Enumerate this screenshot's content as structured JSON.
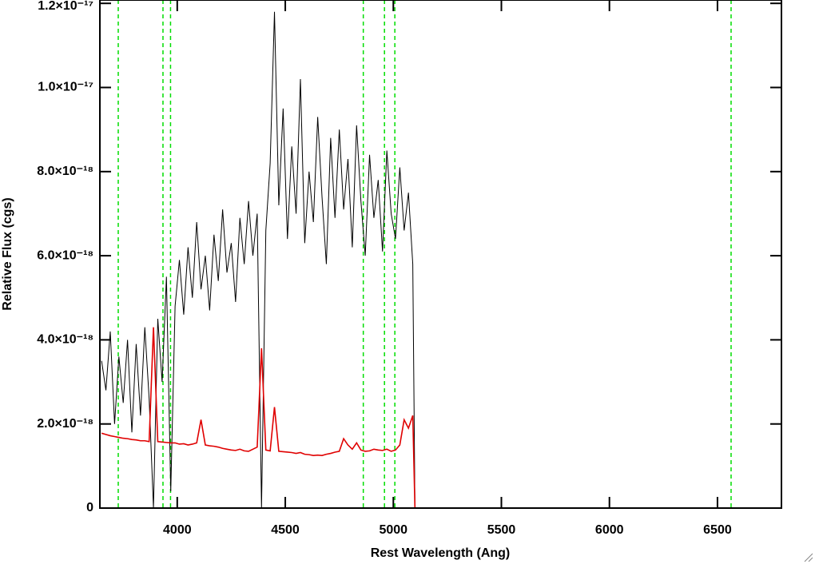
{
  "chart_data": {
    "type": "line",
    "xlabel": "Rest Wavelength (Ang)",
    "ylabel": "Relative Flux (cgs)",
    "xlim": [
      3642,
      6796
    ],
    "ylim": [
      0,
      1.208e-17
    ],
    "xticks": [
      4000,
      4500,
      5000,
      5500,
      6000,
      6500
    ],
    "yticks": [
      0,
      {
        "value": 2e-18,
        "label": "2.0×10⁻¹⁸"
      },
      {
        "value": 4e-18,
        "label": "4.0×10⁻¹⁸"
      },
      {
        "value": 6e-18,
        "label": "6.0×10⁻¹⁸"
      },
      {
        "value": 8e-18,
        "label": "8.0×10⁻¹⁸"
      },
      {
        "value": 1e-17,
        "label": "1.0×10⁻¹⁷"
      },
      {
        "value": 1.2e-17,
        "label": "1.2×10⁻¹⁷"
      }
    ],
    "x": [
      3650,
      3670,
      3690,
      3710,
      3730,
      3750,
      3770,
      3790,
      3810,
      3830,
      3850,
      3870,
      3890,
      3910,
      3930,
      3950,
      3970,
      3990,
      4010,
      4030,
      4050,
      4070,
      4090,
      4110,
      4130,
      4150,
      4170,
      4190,
      4210,
      4230,
      4250,
      4270,
      4290,
      4310,
      4330,
      4350,
      4370,
      4390,
      4410,
      4430,
      4450,
      4470,
      4490,
      4510,
      4530,
      4550,
      4570,
      4590,
      4610,
      4630,
      4650,
      4670,
      4690,
      4710,
      4730,
      4750,
      4770,
      4790,
      4810,
      4830,
      4850,
      4870,
      4890,
      4910,
      4930,
      4950,
      4970,
      4990,
      5010,
      5030,
      5050,
      5070,
      5090,
      5100,
      6790
    ],
    "series": [
      {
        "color": "#000000",
        "values": [
          3.5e-18,
          2.8e-18,
          4.2e-18,
          2e-18,
          3.6e-18,
          2.5e-18,
          4e-18,
          1.8e-18,
          3.9e-18,
          2.2e-18,
          4.3e-18,
          2.6e-18,
          0,
          4.5e-18,
          3e-18,
          5.5e-18,
          4e-19,
          4.8e-18,
          5.9e-18,
          4.6e-18,
          6.2e-18,
          5e-18,
          6.8e-18,
          5.2e-18,
          6e-18,
          4.7e-18,
          6.5e-18,
          5.4e-18,
          7.1e-18,
          5.6e-18,
          6.3e-18,
          4.9e-18,
          6.9e-18,
          5.8e-18,
          7.3e-18,
          6e-18,
          7e-18,
          0,
          6.6e-18,
          8.2e-18,
          1.18e-17,
          7.2e-18,
          9.5e-18,
          6.4e-18,
          8.6e-18,
          7e-18,
          1.02e-17,
          6.3e-18,
          8e-18,
          6.8e-18,
          9.3e-18,
          7.4e-18,
          5.8e-18,
          8.8e-18,
          6.9e-18,
          9e-18,
          7.1e-18,
          8.3e-18,
          6.2e-18,
          9.1e-18,
          7.3e-18,
          6e-18,
          8.4e-18,
          6.9e-18,
          7.8e-18,
          6.1e-18,
          8.5e-18,
          7e-18,
          6.4e-18,
          8.1e-18,
          6.6e-18,
          7.5e-18,
          5.8e-18,
          0,
          0
        ]
      },
      {
        "color": "#e00000",
        "values": [
          1.78e-18,
          1.75e-18,
          1.72e-18,
          1.7e-18,
          1.68e-18,
          1.66e-18,
          1.65e-18,
          1.63e-18,
          1.62e-18,
          1.6e-18,
          1.6e-18,
          1.58e-18,
          4.3e-18,
          1.58e-18,
          1.57e-18,
          1.56e-18,
          1.55e-18,
          1.55e-18,
          1.52e-18,
          1.53e-18,
          1.5e-18,
          1.52e-18,
          1.55e-18,
          2.1e-18,
          1.5e-18,
          1.48e-18,
          1.47e-18,
          1.45e-18,
          1.42e-18,
          1.4e-18,
          1.38e-18,
          1.37e-18,
          1.4e-18,
          1.36e-18,
          1.35e-18,
          1.4e-18,
          1.45e-18,
          3.8e-18,
          1.38e-18,
          1.36e-18,
          2.4e-18,
          1.35e-18,
          1.34e-18,
          1.33e-18,
          1.32e-18,
          1.3e-18,
          1.32e-18,
          1.28e-18,
          1.27e-18,
          1.25e-18,
          1.26e-18,
          1.25e-18,
          1.28e-18,
          1.3e-18,
          1.33e-18,
          1.35e-18,
          1.65e-18,
          1.5e-18,
          1.4e-18,
          1.55e-18,
          1.38e-18,
          1.35e-18,
          1.36e-18,
          1.4e-18,
          1.38e-18,
          1.37e-18,
          1.4e-18,
          1.35e-18,
          1.38e-18,
          1.5e-18,
          2.1e-18,
          1.9e-18,
          2.2e-18,
          0,
          0
        ]
      }
    ],
    "reference_lines": {
      "color": "#00dd00",
      "x": [
        3727,
        3934,
        3969,
        4861,
        4959,
        5007,
        6563
      ]
    }
  }
}
